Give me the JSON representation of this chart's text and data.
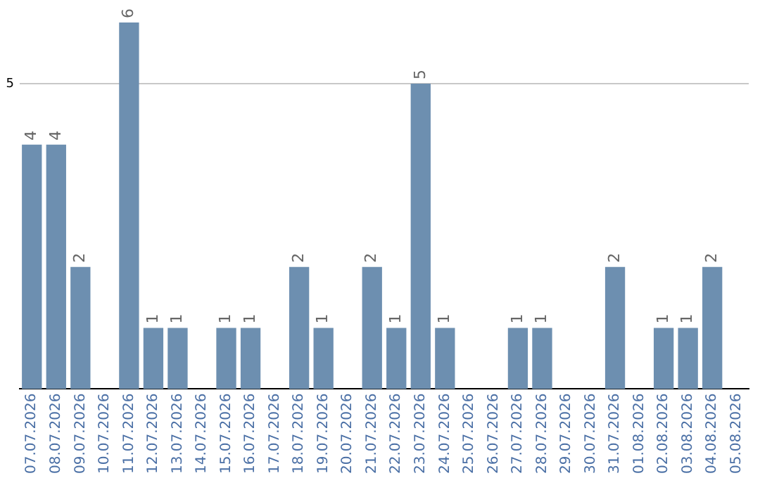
{
  "chart_data": {
    "type": "bar",
    "categories": [
      "07.07.2026",
      "08.07.2026",
      "09.07.2026",
      "10.07.2026",
      "11.07.2026",
      "12.07.2026",
      "13.07.2026",
      "14.07.2026",
      "15.07.2026",
      "16.07.2026",
      "17.07.2026",
      "18.07.2026",
      "19.07.2026",
      "20.07.2026",
      "21.07.2026",
      "22.07.2026",
      "23.07.2026",
      "24.07.2026",
      "25.07.2026",
      "26.07.2026",
      "27.07.2026",
      "28.07.2026",
      "29.07.2026",
      "30.07.2026",
      "31.07.2026",
      "01.08.2026",
      "02.08.2026",
      "03.08.2026",
      "04.08.2026",
      "05.08.2026"
    ],
    "values": [
      4,
      4,
      2,
      null,
      6,
      1,
      1,
      null,
      1,
      1,
      null,
      2,
      1,
      null,
      2,
      1,
      5,
      1,
      null,
      null,
      1,
      1,
      null,
      null,
      2,
      null,
      1,
      1,
      2,
      null
    ],
    "color": "#6d8fb0",
    "ref_lines": [
      {
        "axis": "y",
        "value": 5,
        "label": "5",
        "color": "#c8c8c8"
      }
    ],
    "data_labels": true
  }
}
